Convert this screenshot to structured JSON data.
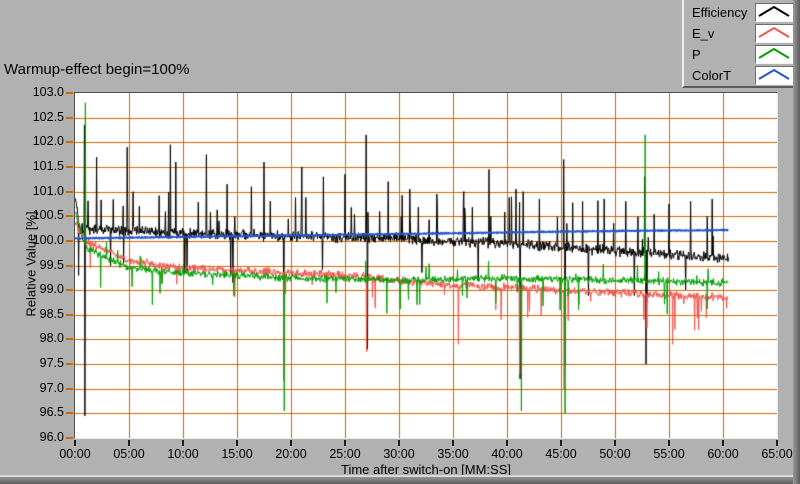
{
  "title": "Warmup-effect begin=100%",
  "legend": {
    "items": [
      {
        "label": "Efficiency",
        "color": "#000000"
      },
      {
        "label": "E_v",
        "color": "#f4564f"
      },
      {
        "label": "P",
        "color": "#00a000"
      },
      {
        "label": "ColorT",
        "color": "#2255cc"
      }
    ]
  },
  "axes": {
    "y_tick_labels": [
      "103.0",
      "102.5",
      "102.0",
      "101.5",
      "101.0",
      "100.5",
      "100.0",
      "99.5",
      "99.0",
      "98.5",
      "98.0",
      "97.5",
      "97.0",
      "96.5",
      "96.0"
    ],
    "x_tick_labels": [
      "00:00",
      "05:00",
      "10:00",
      "15:00",
      "20:00",
      "25:00",
      "30:00",
      "35:00",
      "40:00",
      "45:00",
      "50:00",
      "55:00",
      "60:00",
      "65:00"
    ]
  },
  "chart_data": {
    "type": "line",
    "title": "Warmup-effect begin=100%",
    "xlabel": "Time after switch-on [MM:SS]",
    "ylabel": "Relative Value [%]",
    "xlim_seconds": [
      0,
      3900
    ],
    "x_tick_interval_seconds": 300,
    "ylim": [
      96.0,
      103.0
    ],
    "y_tick_step": 0.5,
    "grid": true,
    "grid_color": "#c96a00",
    "plot_bg": "#ffffff",
    "legend_position": "top-right",
    "data_end_seconds": 3630,
    "sample_step_seconds": 2.5,
    "noise_seed": 1337,
    "series": [
      {
        "name": "Efficiency",
        "color": "#000000",
        "width": 1,
        "noise": 0.13,
        "spike_up_prob": 0.035,
        "spike_up_max": 1.05,
        "spike_down_prob": 0.012,
        "spike_down_max": 1.0,
        "trend": [
          [
            0,
            100.9
          ],
          [
            30,
            100.25
          ],
          [
            600,
            100.15
          ],
          [
            1200,
            100.1
          ],
          [
            1800,
            100.05
          ],
          [
            2400,
            99.95
          ],
          [
            3000,
            99.8
          ],
          [
            3630,
            99.65
          ]
        ],
        "events": [
          [
            20,
            99.3
          ],
          [
            52,
            102.35
          ],
          [
            55,
            96.45
          ],
          [
            120,
            101.7
          ],
          [
            290,
            101.9
          ],
          [
            530,
            101.95
          ],
          [
            560,
            101.6
          ],
          [
            730,
            101.75
          ],
          [
            845,
            101.15
          ],
          [
            980,
            101.1
          ],
          [
            1050,
            101.6
          ],
          [
            1160,
            97.9
          ],
          [
            1260,
            101.5
          ],
          [
            1380,
            101.3
          ],
          [
            1500,
            101.35
          ],
          [
            1618,
            102.15
          ],
          [
            1625,
            97.8
          ],
          [
            1740,
            101.2
          ],
          [
            1860,
            101.05
          ],
          [
            2010,
            100.95
          ],
          [
            2160,
            101.0
          ],
          [
            2300,
            101.45
          ],
          [
            2450,
            101.05
          ],
          [
            2472,
            97.2
          ],
          [
            2490,
            101.0
          ],
          [
            2580,
            100.85
          ],
          [
            2715,
            101.65
          ],
          [
            2722,
            97.5
          ],
          [
            2820,
            100.8
          ],
          [
            2940,
            100.85
          ],
          [
            3060,
            100.8
          ],
          [
            3165,
            101.3
          ],
          [
            3172,
            97.5
          ],
          [
            3300,
            100.75
          ],
          [
            3420,
            100.8
          ],
          [
            3540,
            100.85
          ]
        ]
      },
      {
        "name": "E_v",
        "color": "#f4564f",
        "width": 1,
        "noise": 0.1,
        "spike_down_prob": 0.02,
        "spike_down_max": 0.7,
        "trend": [
          [
            0,
            100.35
          ],
          [
            60,
            100.0
          ],
          [
            300,
            99.6
          ],
          [
            600,
            99.45
          ],
          [
            900,
            99.4
          ],
          [
            1200,
            99.35
          ],
          [
            1500,
            99.3
          ],
          [
            1800,
            99.2
          ],
          [
            2100,
            99.1
          ],
          [
            2400,
            99.05
          ],
          [
            2700,
            99.0
          ],
          [
            3000,
            98.95
          ],
          [
            3300,
            98.9
          ],
          [
            3630,
            98.85
          ]
        ],
        "events": [
          [
            1160,
            97.15
          ],
          [
            1620,
            97.75
          ],
          [
            2130,
            97.9
          ],
          [
            2470,
            97.3
          ],
          [
            2718,
            97.0
          ],
          [
            3320,
            97.9
          ]
        ]
      },
      {
        "name": "P",
        "color": "#00a000",
        "width": 1,
        "noise": 0.09,
        "spike_up_prob": 0.01,
        "spike_up_max": 0.4,
        "spike_down_prob": 0.018,
        "spike_down_max": 0.7,
        "trend": [
          [
            0,
            100.6
          ],
          [
            60,
            99.85
          ],
          [
            300,
            99.45
          ],
          [
            600,
            99.35
          ],
          [
            900,
            99.3
          ],
          [
            1200,
            99.25
          ],
          [
            1800,
            99.2
          ],
          [
            2400,
            99.25
          ],
          [
            3000,
            99.2
          ],
          [
            3630,
            99.15
          ]
        ],
        "events": [
          [
            58,
            102.8
          ],
          [
            1162,
            96.55
          ],
          [
            2480,
            96.55
          ],
          [
            2723,
            96.5
          ],
          [
            3168,
            102.15
          ]
        ]
      },
      {
        "name": "ColorT",
        "color": "#2255cc",
        "width": 1.8,
        "noise": 0.013,
        "trend": [
          [
            0,
            100.05
          ],
          [
            600,
            100.08
          ],
          [
            1200,
            100.11
          ],
          [
            1800,
            100.14
          ],
          [
            2400,
            100.17
          ],
          [
            3000,
            100.2
          ],
          [
            3660,
            100.22
          ]
        ],
        "events": []
      }
    ]
  }
}
